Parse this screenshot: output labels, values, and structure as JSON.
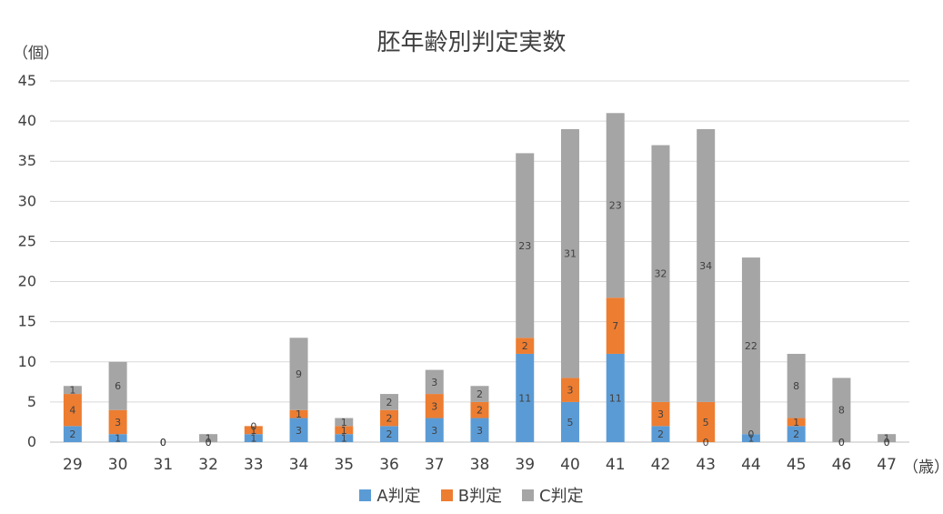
{
  "chart_data": {
    "type": "bar",
    "stacked": true,
    "title": "胚年齢別判定実数",
    "ylabel": "（個）",
    "xlabel": "（歳）",
    "ylim": [
      0,
      45
    ],
    "yticks": [
      0,
      5,
      10,
      15,
      20,
      25,
      30,
      35,
      40,
      45
    ],
    "grid": true,
    "legend_position": "bottom",
    "categories": [
      "29",
      "30",
      "31",
      "32",
      "33",
      "34",
      "35",
      "36",
      "37",
      "38",
      "39",
      "40",
      "41",
      "42",
      "43",
      "44",
      "45",
      "46",
      "47"
    ],
    "series": [
      {
        "name": "A判定",
        "color": "#5B9BD5",
        "values": [
          2,
          1,
          0,
          0,
          1,
          3,
          1,
          2,
          3,
          3,
          11,
          5,
          11,
          2,
          0,
          1,
          2,
          0,
          0
        ]
      },
      {
        "name": "B判定",
        "color": "#ED7D31",
        "values": [
          4,
          3,
          0,
          0,
          1,
          1,
          1,
          2,
          3,
          2,
          2,
          3,
          7,
          3,
          5,
          0,
          1,
          0,
          0
        ]
      },
      {
        "name": "C判定",
        "color": "#A5A5A5",
        "values": [
          1,
          6,
          0,
          1,
          0,
          9,
          1,
          2,
          3,
          2,
          23,
          31,
          23,
          32,
          34,
          22,
          8,
          8,
          1
        ]
      }
    ]
  }
}
